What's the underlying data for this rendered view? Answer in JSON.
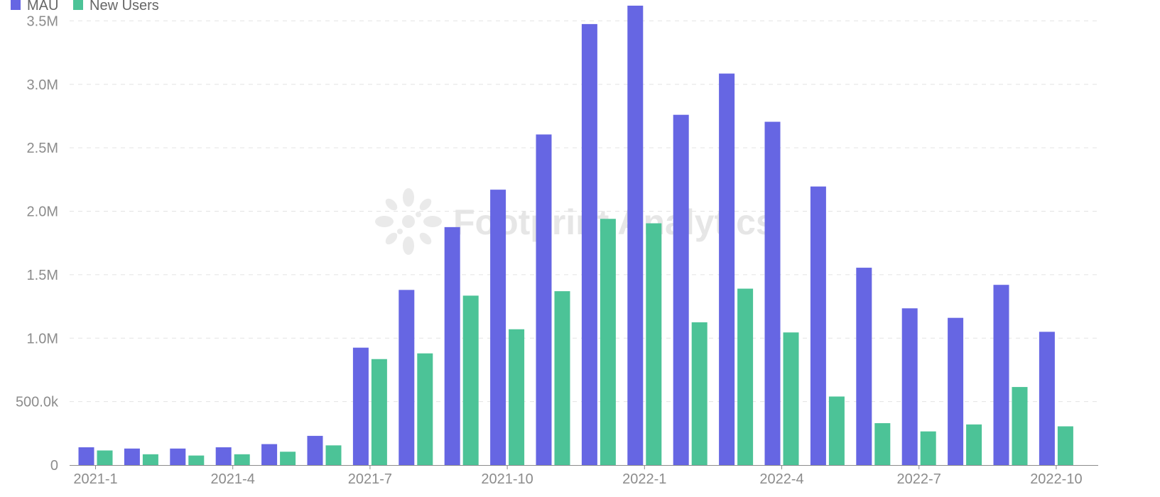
{
  "legend": {
    "items": [
      {
        "label": "MAU",
        "color": "#6666e3"
      },
      {
        "label": "New Users",
        "color": "#4cc397"
      }
    ]
  },
  "watermark": {
    "text": "Footprint Analytics",
    "icon": "footprint-logo-icon"
  },
  "chart_data": {
    "type": "bar",
    "categories": [
      "2021-1",
      "2021-2",
      "2021-3",
      "2021-4",
      "2021-5",
      "2021-6",
      "2021-7",
      "2021-8",
      "2021-9",
      "2021-10",
      "2021-11",
      "2021-12",
      "2022-1",
      "2022-2",
      "2022-3",
      "2022-4",
      "2022-5",
      "2022-6",
      "2022-7",
      "2022-8",
      "2022-9",
      "2022-10"
    ],
    "category_labels_shown": [
      "2021-1",
      "2021-4",
      "2021-7",
      "2021-10",
      "2022-1",
      "2022-4",
      "2022-7",
      "2022-10"
    ],
    "series": [
      {
        "name": "MAU",
        "color": "#6666e3",
        "values": [
          140000,
          130000,
          130000,
          140000,
          165000,
          230000,
          925000,
          1380000,
          1875000,
          2170000,
          2605000,
          3475000,
          3620000,
          2760000,
          3085000,
          2705000,
          2195000,
          1555000,
          1235000,
          1160000,
          1420000,
          1050000
        ]
      },
      {
        "name": "New Users",
        "color": "#4cc397",
        "values": [
          115000,
          85000,
          75000,
          85000,
          105000,
          155000,
          835000,
          880000,
          1335000,
          1070000,
          1370000,
          1940000,
          1905000,
          1125000,
          1390000,
          1045000,
          540000,
          330000,
          265000,
          320000,
          615000,
          305000
        ]
      }
    ],
    "y_ticks": [
      {
        "value": 0,
        "label": "0"
      },
      {
        "value": 500000,
        "label": "500.0k"
      },
      {
        "value": 1000000,
        "label": "1.0M"
      },
      {
        "value": 1500000,
        "label": "1.5M"
      },
      {
        "value": 2000000,
        "label": "2.0M"
      },
      {
        "value": 2500000,
        "label": "2.5M"
      },
      {
        "value": 3000000,
        "label": "3.0M"
      },
      {
        "value": 3500000,
        "label": "3.5M"
      }
    ],
    "ylim": [
      0,
      3800000
    ],
    "title": "",
    "xlabel": "",
    "ylabel": "",
    "grid": true,
    "legend_position": "top-left"
  }
}
